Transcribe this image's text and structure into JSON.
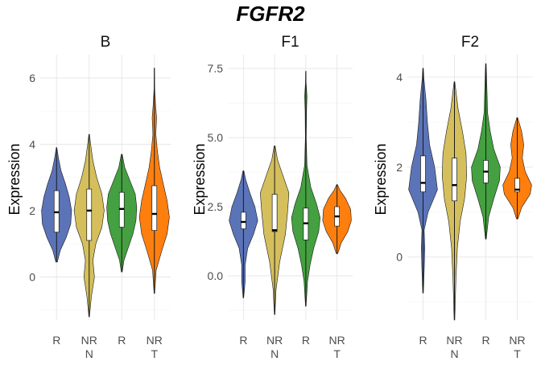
{
  "chart_data": {
    "type": "violin",
    "title": "FGFR2",
    "colors": {
      "R_N": "#5b74b8",
      "NR_N": "#d4bf5c",
      "R_T": "#44a040",
      "NR_T": "#ff7f0e"
    },
    "categories": [
      {
        "key": "R_N",
        "label": "R",
        "group": "N"
      },
      {
        "key": "NR_N",
        "label": "NR",
        "group": "N"
      },
      {
        "key": "R_T",
        "label": "R",
        "group": "T"
      },
      {
        "key": "NR_T",
        "label": "NR",
        "group": "T"
      }
    ],
    "panels": [
      {
        "title": "B",
        "ylabel": "Expression",
        "ylim": [
          -1.3,
          6.7
        ],
        "yticks": [
          0,
          2,
          4,
          6
        ],
        "tick_labels": [
          "0",
          "2",
          "4",
          "6"
        ],
        "series": [
          {
            "key": "R_N",
            "min": 0.45,
            "max": 3.9,
            "q1": 1.35,
            "median": 1.95,
            "q3": 2.6,
            "density": [
              [
                0.45,
                0.05
              ],
              [
                0.8,
                0.25
              ],
              [
                1.2,
                0.65
              ],
              [
                1.6,
                0.95
              ],
              [
                2.0,
                1.0
              ],
              [
                2.4,
                0.85
              ],
              [
                2.8,
                0.6
              ],
              [
                3.2,
                0.3
              ],
              [
                3.6,
                0.12
              ],
              [
                3.9,
                0.02
              ]
            ]
          },
          {
            "key": "NR_N",
            "min": -1.2,
            "max": 4.3,
            "q1": 1.1,
            "median": 2.0,
            "q3": 2.65,
            "density": [
              [
                -1.2,
                0.02
              ],
              [
                -0.6,
                0.15
              ],
              [
                0.0,
                0.35
              ],
              [
                0.5,
                0.25
              ],
              [
                1.0,
                0.45
              ],
              [
                1.5,
                0.85
              ],
              [
                2.0,
                1.0
              ],
              [
                2.5,
                0.85
              ],
              [
                3.0,
                0.5
              ],
              [
                3.5,
                0.25
              ],
              [
                4.0,
                0.1
              ],
              [
                4.3,
                0.02
              ]
            ]
          },
          {
            "key": "R_T",
            "min": 0.15,
            "max": 3.7,
            "q1": 1.5,
            "median": 2.05,
            "q3": 2.55,
            "density": [
              [
                0.15,
                0.03
              ],
              [
                0.5,
                0.15
              ],
              [
                0.9,
                0.45
              ],
              [
                1.3,
                0.75
              ],
              [
                1.7,
                0.95
              ],
              [
                2.1,
                1.0
              ],
              [
                2.5,
                0.9
              ],
              [
                2.9,
                0.55
              ],
              [
                3.3,
                0.2
              ],
              [
                3.7,
                0.03
              ]
            ]
          },
          {
            "key": "NR_T",
            "min": -0.5,
            "max": 6.3,
            "q1": 1.4,
            "median": 1.9,
            "q3": 2.75,
            "density": [
              [
                -0.5,
                0.02
              ],
              [
                0.2,
                0.12
              ],
              [
                0.8,
                0.5
              ],
              [
                1.3,
                0.85
              ],
              [
                1.8,
                1.0
              ],
              [
                2.3,
                0.85
              ],
              [
                2.8,
                0.6
              ],
              [
                3.3,
                0.35
              ],
              [
                3.8,
                0.2
              ],
              [
                4.3,
                0.1
              ],
              [
                4.8,
                0.15
              ],
              [
                5.2,
                0.08
              ],
              [
                5.7,
                0.02
              ],
              [
                6.3,
                0.01
              ]
            ]
          }
        ]
      },
      {
        "title": "F1",
        "ylabel": "Expression",
        "ylim": [
          -1.6,
          8.0
        ],
        "yticks": [
          0.0,
          2.5,
          5.0,
          7.5
        ],
        "tick_labels": [
          "0.0",
          "2.5",
          "5.0",
          "7.5"
        ],
        "series": [
          {
            "key": "R_N",
            "min": -0.8,
            "max": 3.8,
            "q1": 1.7,
            "median": 1.95,
            "q3": 2.3,
            "density": [
              [
                -0.8,
                0.02
              ],
              [
                -0.2,
                0.12
              ],
              [
                0.4,
                0.12
              ],
              [
                1.0,
                0.3
              ],
              [
                1.5,
                0.7
              ],
              [
                2.0,
                1.0
              ],
              [
                2.5,
                0.8
              ],
              [
                3.0,
                0.45
              ],
              [
                3.5,
                0.15
              ],
              [
                3.8,
                0.03
              ]
            ]
          },
          {
            "key": "NR_N",
            "min": -1.4,
            "max": 4.7,
            "q1": 1.6,
            "median": 1.65,
            "q3": 2.95,
            "density": [
              [
                -1.4,
                0.02
              ],
              [
                -0.5,
                0.1
              ],
              [
                0.5,
                0.35
              ],
              [
                1.5,
                0.75
              ],
              [
                2.3,
                0.9
              ],
              [
                3.0,
                1.0
              ],
              [
                3.6,
                0.6
              ],
              [
                4.2,
                0.2
              ],
              [
                4.7,
                0.03
              ]
            ]
          },
          {
            "key": "R_T",
            "min": -1.1,
            "max": 7.4,
            "q1": 1.3,
            "median": 1.9,
            "q3": 2.45,
            "density": [
              [
                -1.1,
                0.02
              ],
              [
                -0.2,
                0.12
              ],
              [
                0.4,
                0.3
              ],
              [
                1.0,
                0.55
              ],
              [
                1.6,
                0.9
              ],
              [
                2.1,
                1.0
              ],
              [
                2.6,
                0.75
              ],
              [
                3.2,
                0.35
              ],
              [
                4.0,
                0.08
              ],
              [
                5.0,
                0.03
              ],
              [
                6.0,
                0.05
              ],
              [
                6.5,
                0.08
              ],
              [
                7.0,
                0.02
              ],
              [
                7.4,
                0.01
              ]
            ]
          },
          {
            "key": "NR_T",
            "min": 0.8,
            "max": 3.3,
            "q1": 1.8,
            "median": 2.15,
            "q3": 2.5,
            "density": [
              [
                0.8,
                0.05
              ],
              [
                1.2,
                0.3
              ],
              [
                1.6,
                0.75
              ],
              [
                2.0,
                1.0
              ],
              [
                2.4,
                0.95
              ],
              [
                2.8,
                0.6
              ],
              [
                3.1,
                0.2
              ],
              [
                3.3,
                0.03
              ]
            ]
          }
        ]
      },
      {
        "title": "F2",
        "ylabel": "Expression",
        "ylim": [
          -1.4,
          4.5
        ],
        "yticks": [
          0,
          2,
          4
        ],
        "tick_labels": [
          "0",
          "2",
          "4"
        ],
        "series": [
          {
            "key": "R_N",
            "min": -0.8,
            "max": 4.2,
            "q1": 1.45,
            "median": 1.65,
            "q3": 2.25,
            "density": [
              [
                -0.8,
                0.02
              ],
              [
                -0.3,
                0.08
              ],
              [
                0.2,
                0.12
              ],
              [
                0.6,
                0.08
              ],
              [
                1.0,
                0.35
              ],
              [
                1.5,
                1.0
              ],
              [
                2.0,
                0.8
              ],
              [
                2.5,
                0.45
              ],
              [
                3.0,
                0.3
              ],
              [
                3.5,
                0.2
              ],
              [
                4.0,
                0.05
              ],
              [
                4.2,
                0.02
              ]
            ]
          },
          {
            "key": "NR_N",
            "min": -1.4,
            "max": 3.9,
            "q1": 1.25,
            "median": 1.6,
            "q3": 2.2,
            "density": [
              [
                -1.4,
                0.02
              ],
              [
                -0.5,
                0.1
              ],
              [
                0.2,
                0.2
              ],
              [
                0.8,
                0.4
              ],
              [
                1.3,
                0.7
              ],
              [
                1.8,
                0.85
              ],
              [
                2.3,
                0.8
              ],
              [
                2.8,
                0.55
              ],
              [
                3.3,
                0.25
              ],
              [
                3.9,
                0.02
              ]
            ]
          },
          {
            "key": "R_T",
            "min": 0.4,
            "max": 4.3,
            "q1": 1.65,
            "median": 1.9,
            "q3": 2.15,
            "density": [
              [
                0.4,
                0.03
              ],
              [
                0.9,
                0.2
              ],
              [
                1.3,
                0.55
              ],
              [
                1.7,
                0.95
              ],
              [
                2.0,
                1.0
              ],
              [
                2.4,
                0.55
              ],
              [
                2.8,
                0.3
              ],
              [
                3.2,
                0.12
              ],
              [
                3.7,
                0.08
              ],
              [
                4.3,
                0.02
              ]
            ]
          },
          {
            "key": "NR_T",
            "min": 0.85,
            "max": 3.1,
            "q1": 1.45,
            "median": 1.5,
            "q3": 1.75,
            "density": [
              [
                0.85,
                0.05
              ],
              [
                1.1,
                0.3
              ],
              [
                1.4,
                0.9
              ],
              [
                1.6,
                1.0
              ],
              [
                1.9,
                0.55
              ],
              [
                2.2,
                0.35
              ],
              [
                2.5,
                0.45
              ],
              [
                2.8,
                0.3
              ],
              [
                3.1,
                0.03
              ]
            ]
          }
        ]
      }
    ]
  }
}
